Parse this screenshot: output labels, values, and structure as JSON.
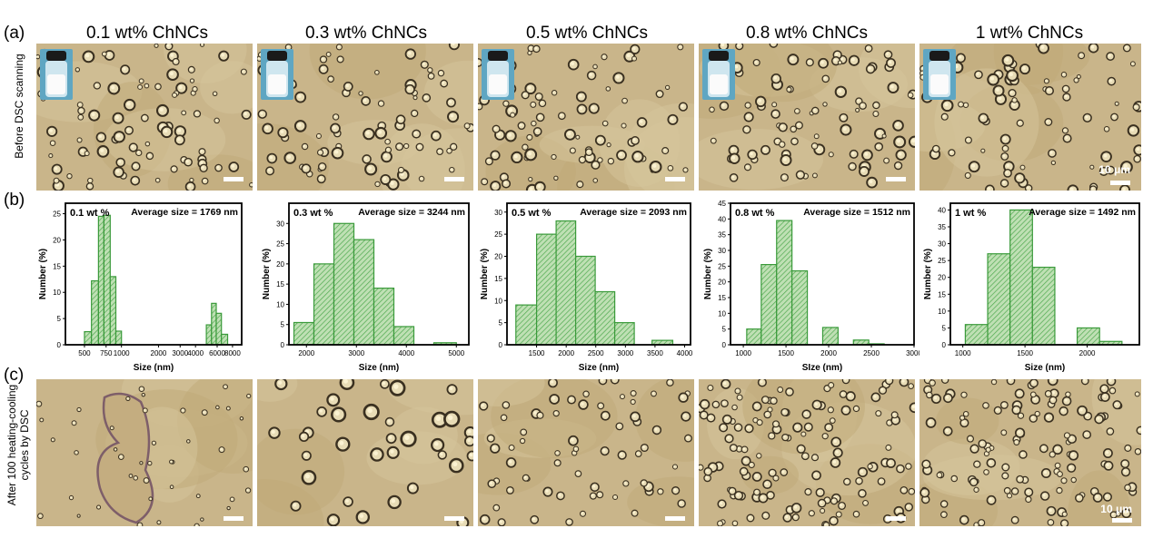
{
  "panels": {
    "a": "(a)",
    "b": "(b)",
    "c": "(c)"
  },
  "columns": [
    "0.1 wt% ChNCs",
    "0.3 wt% ChNCs",
    "0.5 wt% ChNCs",
    "0.8 wt% ChNCs",
    "1 wt% ChNCs"
  ],
  "row_labels": {
    "before": "Before DSC scanning",
    "after_line1": "After 100 heating-cooling",
    "after_line2": "cycles by DSC"
  },
  "scale_text": "10 μm",
  "chart_data": [
    {
      "type": "bar",
      "title": "0.1 wt %",
      "annotation": "Average size = 1769 nm",
      "xlabel": "Size (nm)",
      "ylabel": "Number (%)",
      "x_scale": "log",
      "xlim": [
        350,
        9500
      ],
      "ylim": [
        0,
        27
      ],
      "yticks": [
        0,
        5,
        10,
        15,
        20,
        25
      ],
      "xticks": [
        500,
        750,
        1000,
        2000,
        3000,
        4000,
        6000,
        8000
      ],
      "xtick_labels": [
        "500",
        "750",
        "1000",
        "2000",
        "3000",
        "4000",
        "6000",
        "8000"
      ],
      "bins": [
        [
          500,
          570,
          2.5
        ],
        [
          570,
          650,
          12.2
        ],
        [
          650,
          720,
          24.5
        ],
        [
          720,
          810,
          24.7
        ],
        [
          810,
          900,
          13
        ],
        [
          900,
          1000,
          2.6
        ],
        [
          4900,
          5400,
          3.8
        ],
        [
          5400,
          5900,
          7.9
        ],
        [
          5900,
          6500,
          6
        ],
        [
          6500,
          7300,
          2
        ]
      ]
    },
    {
      "type": "bar",
      "title": "0.3 wt %",
      "annotation": "Average size = 3244 nm",
      "xlabel": "Size (nm)",
      "ylabel": "Number (%)",
      "x_scale": "linear",
      "xlim": [
        1650,
        5250
      ],
      "ylim": [
        0,
        35
      ],
      "yticks": [
        0,
        5,
        10,
        15,
        20,
        25,
        30
      ],
      "xticks": [
        2000,
        3000,
        4000,
        5000
      ],
      "xtick_labels": [
        "2000",
        "3000",
        "4000",
        "5000"
      ],
      "bins": [
        [
          1750,
          2150,
          5.5
        ],
        [
          2150,
          2550,
          20
        ],
        [
          2550,
          2950,
          30
        ],
        [
          2950,
          3350,
          26
        ],
        [
          3350,
          3750,
          14
        ],
        [
          3750,
          4150,
          4.5
        ],
        [
          4150,
          4550,
          0
        ],
        [
          4550,
          5000,
          0.5
        ]
      ]
    },
    {
      "type": "bar",
      "title": "0.5 wt %",
      "annotation": "Average size = 2093 nm",
      "xlabel": "Size (nm)",
      "ylabel": "Number (%)",
      "x_scale": "linear",
      "xlim": [
        1000,
        4100
      ],
      "ylim": [
        0,
        32
      ],
      "yticks": [
        0,
        5,
        10,
        15,
        20,
        25,
        30
      ],
      "xticks": [
        1500,
        2000,
        2500,
        3000,
        3500,
        4000
      ],
      "xtick_labels": [
        "1500",
        "2000",
        "2500",
        "3000",
        "3500",
        "4000"
      ],
      "bins": [
        [
          1150,
          1500,
          9
        ],
        [
          1500,
          1830,
          25
        ],
        [
          1830,
          2160,
          28
        ],
        [
          2160,
          2490,
          20
        ],
        [
          2490,
          2820,
          12
        ],
        [
          2820,
          3150,
          5
        ],
        [
          3150,
          3450,
          0
        ],
        [
          3450,
          3800,
          1
        ]
      ]
    },
    {
      "type": "bar",
      "title": "0.8 wt %",
      "annotation": "Average size = 1512 nm",
      "xlabel": "SIze (nm)",
      "ylabel": "Number (%)",
      "x_scale": "linear",
      "xlim": [
        850,
        3000
      ],
      "ylim": [
        0,
        45
      ],
      "yticks": [
        0,
        5,
        10,
        15,
        20,
        25,
        30,
        35,
        40,
        45
      ],
      "xticks": [
        1000,
        1500,
        2000,
        2500,
        3000
      ],
      "xtick_labels": [
        "1000",
        "1500",
        "2000",
        "2500",
        "3000"
      ],
      "bins": [
        [
          1040,
          1210,
          5
        ],
        [
          1210,
          1390,
          25.5
        ],
        [
          1390,
          1570,
          39.5
        ],
        [
          1570,
          1750,
          23.5
        ],
        [
          1750,
          1930,
          0
        ],
        [
          1930,
          2110,
          5.5
        ],
        [
          2110,
          2290,
          0
        ],
        [
          2290,
          2470,
          1.5
        ],
        [
          2470,
          2650,
          0.3
        ]
      ]
    },
    {
      "type": "bar",
      "title": "1 wt %",
      "annotation": "Average size = 1492 nm",
      "xlabel": "Size (nm)",
      "ylabel": "Number (%)",
      "x_scale": "linear",
      "xlim": [
        900,
        2420
      ],
      "ylim": [
        0,
        42
      ],
      "yticks": [
        0,
        5,
        10,
        15,
        20,
        25,
        30,
        35,
        40
      ],
      "xticks": [
        1000,
        1500,
        2000
      ],
      "xtick_labels": [
        "1000",
        "1500",
        "2000"
      ],
      "bins": [
        [
          1020,
          1200,
          6
        ],
        [
          1200,
          1380,
          27
        ],
        [
          1380,
          1560,
          40
        ],
        [
          1560,
          1740,
          23
        ],
        [
          1740,
          1920,
          0
        ],
        [
          1920,
          2100,
          5
        ],
        [
          2100,
          2280,
          1
        ]
      ]
    }
  ],
  "colors": {
    "bar_fill": "#bfe0b4",
    "bar_stroke": "#3a9a3a",
    "hatch": "#4fa94f",
    "micro_bg": "#c9b58a"
  }
}
